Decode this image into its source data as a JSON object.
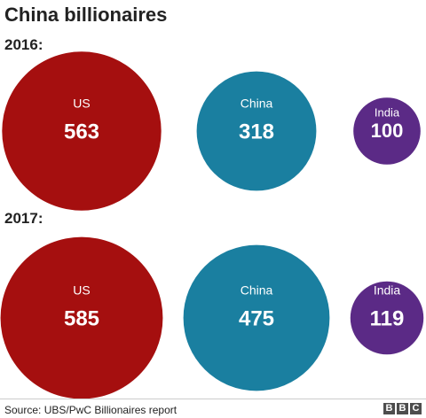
{
  "chart_data": {
    "type": "bubble",
    "title": "China billionaires",
    "source": "Source: UBS/PwC Billionaires report",
    "colors": {
      "US": "#a50f0f",
      "China": "#1a7fa0",
      "India": "#5b2a86"
    },
    "groups": [
      {
        "label": "2016:",
        "items": [
          {
            "name": "US",
            "value": 563
          },
          {
            "name": "China",
            "value": 318
          },
          {
            "name": "India",
            "value": 100
          }
        ]
      },
      {
        "label": "2017:",
        "items": [
          {
            "name": "US",
            "value": 585
          },
          {
            "name": "China",
            "value": 475
          },
          {
            "name": "India",
            "value": 119
          }
        ]
      }
    ]
  },
  "logo": {
    "letters": [
      "B",
      "B",
      "C"
    ]
  }
}
